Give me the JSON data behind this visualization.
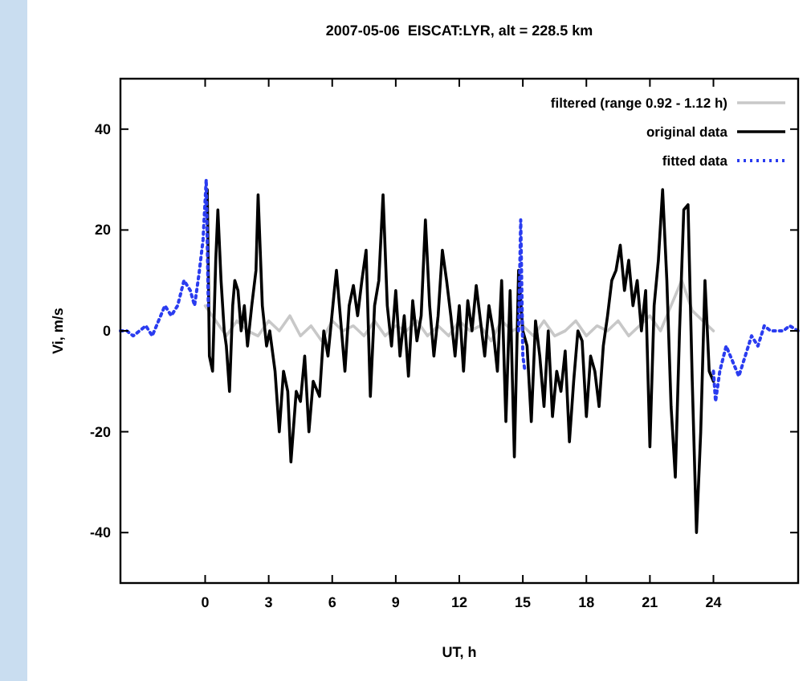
{
  "chart_data": {
    "type": "line",
    "title": "2007-05-06  EISCAT:LYR, alt = 228.5 km",
    "xlabel": "UT, h",
    "ylabel": "Vi, m/s",
    "xlim": [
      -4,
      28
    ],
    "xticks": [
      0,
      3,
      6,
      9,
      12,
      15,
      18,
      21,
      24
    ],
    "ylim": [
      -50,
      50
    ],
    "yticks": [
      -40,
      -20,
      0,
      20,
      40
    ],
    "grid": false,
    "legend": "top right",
    "marker": "none",
    "series": [
      {
        "name": "filtered (range 0.92 - 1.12 h)",
        "color": "#c8c8c8",
        "line_style": "solid",
        "x": [
          0,
          0.5,
          1,
          1.5,
          2,
          2.5,
          3,
          3.5,
          4,
          4.5,
          5,
          5.5,
          6,
          6.5,
          7,
          7.5,
          8,
          8.5,
          9,
          9.5,
          10,
          10.5,
          11,
          11.5,
          12,
          12.5,
          13,
          13.5,
          14,
          14.5,
          15,
          15.5,
          16,
          16.5,
          17,
          17.5,
          18,
          18.5,
          19,
          19.5,
          20,
          20.5,
          21,
          21.5,
          22,
          22.5,
          23,
          23.5,
          24
        ],
        "values": [
          5,
          2,
          -1,
          2,
          0,
          -1,
          2,
          0,
          3,
          -1,
          1,
          -2,
          2,
          0,
          1,
          -1,
          2,
          -1,
          1,
          0,
          2,
          -1,
          1,
          -1,
          2,
          0,
          1,
          -2,
          2,
          0,
          1,
          -1,
          2,
          -1,
          0,
          2,
          -1,
          1,
          0,
          2,
          -1,
          1,
          3,
          0,
          5,
          10,
          4,
          2,
          0
        ]
      },
      {
        "name": "original data",
        "color": "#000000",
        "line_style": "solid",
        "x": [
          0.1,
          0.2,
          0.35,
          0.5,
          0.6,
          0.75,
          0.9,
          1.0,
          1.15,
          1.3,
          1.4,
          1.55,
          1.7,
          1.85,
          2.0,
          2.2,
          2.4,
          2.5,
          2.7,
          2.9,
          3.05,
          3.3,
          3.5,
          3.7,
          3.9,
          4.05,
          4.3,
          4.5,
          4.7,
          4.9,
          5.1,
          5.4,
          5.6,
          5.8,
          6.1,
          6.2,
          6.4,
          6.6,
          6.8,
          7.0,
          7.2,
          7.4,
          7.6,
          7.8,
          8.0,
          8.2,
          8.4,
          8.6,
          8.8,
          9.0,
          9.2,
          9.4,
          9.6,
          9.8,
          10.0,
          10.2,
          10.4,
          10.6,
          10.8,
          11.0,
          11.2,
          11.4,
          11.6,
          11.8,
          12.0,
          12.2,
          12.4,
          12.6,
          12.8,
          13.0,
          13.2,
          13.4,
          13.6,
          13.8,
          14.0,
          14.2,
          14.4,
          14.6,
          14.8,
          15.0,
          15.2,
          15.4,
          15.6,
          15.8,
          16.0,
          16.2,
          16.4,
          16.6,
          16.8,
          17.0,
          17.2,
          17.4,
          17.6,
          17.8,
          18.0,
          18.2,
          18.4,
          18.6,
          18.8,
          19.0,
          19.2,
          19.4,
          19.6,
          19.8,
          20.0,
          20.2,
          20.4,
          20.6,
          20.8,
          21.0,
          21.2,
          21.4,
          21.6,
          21.8,
          22.0,
          22.2,
          22.4,
          22.6,
          22.8,
          23.0,
          23.2,
          23.4,
          23.6,
          23.8,
          24.0
        ],
        "values": [
          28,
          -5,
          -8,
          14,
          24,
          10,
          0,
          -3,
          -12,
          5,
          10,
          8,
          0,
          5,
          -3,
          5,
          12,
          27,
          5,
          -3,
          0,
          -8,
          -20,
          -8,
          -12,
          -26,
          -12,
          -14,
          -5,
          -20,
          -10,
          -13,
          0,
          -5,
          8,
          12,
          2,
          -8,
          5,
          9,
          3,
          10,
          16,
          -13,
          5,
          10,
          27,
          5,
          -3,
          8,
          -5,
          3,
          -9,
          6,
          -2,
          3,
          22,
          5,
          -5,
          3,
          16,
          10,
          3,
          -5,
          5,
          -8,
          6,
          0,
          9,
          2,
          -5,
          5,
          0,
          -8,
          10,
          -18,
          8,
          -25,
          12,
          0,
          -3,
          -18,
          2,
          -5,
          -15,
          0,
          -17,
          -8,
          -12,
          -4,
          -22,
          -10,
          0,
          -2,
          -17,
          -5,
          -8,
          -15,
          -3,
          3,
          10,
          12,
          17,
          8,
          14,
          5,
          10,
          0,
          8,
          -23,
          5,
          14,
          28,
          10,
          -15,
          -29,
          0,
          24,
          25,
          -10,
          -40,
          -20,
          10,
          -8,
          -10
        ]
      },
      {
        "name": "fitted data",
        "color": "#2a3cf0",
        "line_style": "dotted",
        "x": [
          -4,
          -3.7,
          -3.4,
          -3.1,
          -2.8,
          -2.5,
          -2.2,
          -1.9,
          -1.6,
          -1.3,
          -1.0,
          -0.7,
          -0.5,
          -0.3,
          -0.1,
          0.05,
          0.15,
          14.7,
          14.8,
          14.9,
          15.0,
          15.1,
          15.2,
          24.0,
          24.1,
          24.3,
          24.6,
          24.9,
          25.2,
          25.5,
          25.8,
          26.1,
          26.4,
          26.7,
          27.0,
          27.3,
          27.6,
          28
        ],
        "values": [
          0,
          0,
          -1,
          0,
          1,
          -1,
          2,
          5,
          3,
          5,
          10,
          8,
          5,
          11,
          18,
          30,
          5,
          null,
          0,
          22,
          -5,
          -8,
          null,
          -8,
          -14,
          -8,
          -3,
          -6,
          -9,
          -5,
          -1,
          -3,
          1,
          0,
          0,
          0,
          1,
          0
        ]
      }
    ]
  }
}
